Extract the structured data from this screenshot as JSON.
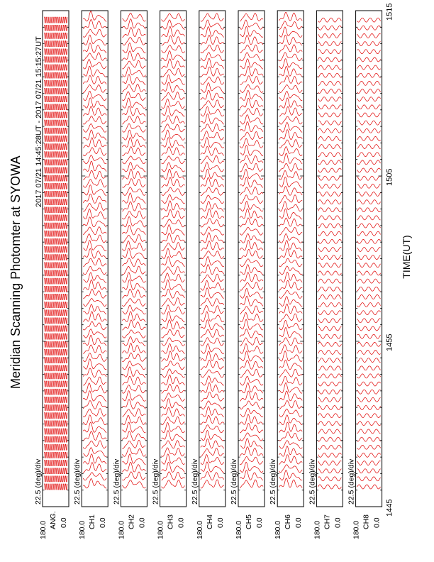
{
  "title": "Meridian Scanning Photomter at SYOWA",
  "time_range": "2017 07/21 14:45:28UT - 2017 07/21 15:15:27UT",
  "x_axis_title": "TIME(UT)",
  "x_ticks": [
    "1445",
    "1455",
    "1505",
    "1515"
  ],
  "colors": {
    "trace": "#e00000",
    "frame": "#000000",
    "background": "#ffffff"
  },
  "chart_data": {
    "type": "line",
    "title": "Meridian Scanning Photomter at SYOWA",
    "subtitle": "2017 07/21 14:45:28UT - 2017 07/21 15:15:27UT",
    "xlabel": "TIME(UT)",
    "x_ticks": [
      "1445",
      "1455",
      "1505",
      "1515"
    ],
    "x_range_ut": [
      "14:45",
      "15:15"
    ],
    "scan_angle_range_deg": [
      0.0,
      180.0
    ],
    "scale_label": "22.5 (deg)/div",
    "orientation": "rotated 90 degrees (time runs bottom-to-top)",
    "panels": [
      {
        "name": "ANG.",
        "ylabel": "ANG.",
        "y_top": "180.0",
        "y_bottom": "0.0",
        "scale": "22.5 (deg)/div"
      },
      {
        "name": "CH1",
        "ylabel": "CH1",
        "y_top": "180.0",
        "y_bottom": "0.0",
        "scale": "22.5 (deg)/div"
      },
      {
        "name": "CH2",
        "ylabel": "CH2",
        "y_top": "180.0",
        "y_bottom": "0.0",
        "scale": "22.5 (deg)/div"
      },
      {
        "name": "CH3",
        "ylabel": "CH3",
        "y_top": "180.0",
        "y_bottom": "0.0",
        "scale": "22.5 (deg)/div"
      },
      {
        "name": "CH4",
        "ylabel": "CH4",
        "y_top": "180.0",
        "y_bottom": "0.0",
        "scale": "22.5 (deg)/div"
      },
      {
        "name": "CH5",
        "ylabel": "CH5",
        "y_top": "180.0",
        "y_bottom": "0.0",
        "scale": "22.5 (deg)/div"
      },
      {
        "name": "CH6",
        "ylabel": "CH6",
        "y_top": "180.0",
        "y_bottom": "0.0",
        "scale": "22.5 (deg)/div"
      },
      {
        "name": "CH7",
        "ylabel": "CH7",
        "y_top": "180.0",
        "y_bottom": "0.0",
        "scale": "22.5 (deg)/div"
      },
      {
        "name": "CH8",
        "ylabel": "CH8",
        "y_top": "180.0",
        "y_bottom": "0.0",
        "scale": "22.5 (deg)/div"
      }
    ]
  }
}
